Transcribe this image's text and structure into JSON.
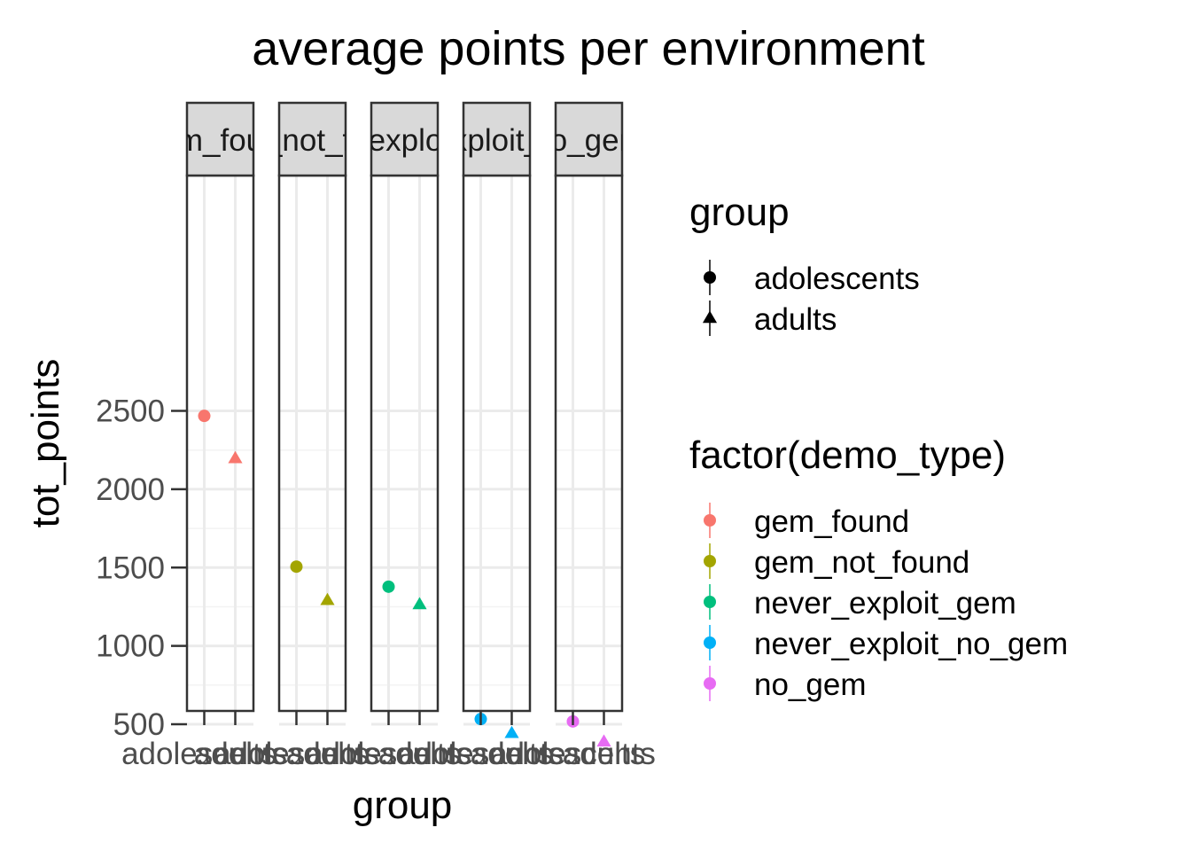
{
  "chart_data": {
    "type": "scatter",
    "title": "average points per environment",
    "xlabel": "group",
    "ylabel": "tot_points",
    "ylim": [
      330,
      2590
    ],
    "yticks": [
      500,
      1000,
      1500,
      2000,
      2500
    ],
    "categories": [
      "adolescents",
      "adults"
    ],
    "facets": [
      {
        "label": "gem_found",
        "color": "#F8766D",
        "points": [
          {
            "x": "adolescents",
            "y": 2468
          },
          {
            "x": "adults",
            "y": 2196
          }
        ]
      },
      {
        "label": "gem_not_found",
        "color": "#A3A500",
        "points": [
          {
            "x": "adolescents",
            "y": 1506
          },
          {
            "x": "adults",
            "y": 1291
          }
        ]
      },
      {
        "label": "never_exploit_gem",
        "color": "#00BF7D",
        "points": [
          {
            "x": "adolescents",
            "y": 1378
          },
          {
            "x": "adults",
            "y": 1264
          }
        ]
      },
      {
        "label": "never_exploit_no_gem",
        "color": "#00B0F6",
        "points": [
          {
            "x": "adolescents",
            "y": 533
          },
          {
            "x": "adults",
            "y": 442
          }
        ]
      },
      {
        "label": "no_gem",
        "color": "#E76BF3",
        "points": [
          {
            "x": "adolescents",
            "y": 518
          },
          {
            "x": "adults",
            "y": 388
          }
        ]
      }
    ],
    "grid": true,
    "legend_position": "right",
    "legends": [
      {
        "title": "group",
        "items": [
          {
            "label": "adolescents",
            "shape": "circle"
          },
          {
            "label": "adults",
            "shape": "triangle"
          }
        ]
      },
      {
        "title": "factor(demo_type)",
        "items": [
          {
            "label": "gem_found",
            "color": "#F8766D"
          },
          {
            "label": "gem_not_found",
            "color": "#A3A500"
          },
          {
            "label": "never_exploit_gem",
            "color": "#00BF7D"
          },
          {
            "label": "never_exploit_no_gem",
            "color": "#00B0F6"
          },
          {
            "label": "no_gem",
            "color": "#E76BF3"
          }
        ]
      }
    ]
  }
}
